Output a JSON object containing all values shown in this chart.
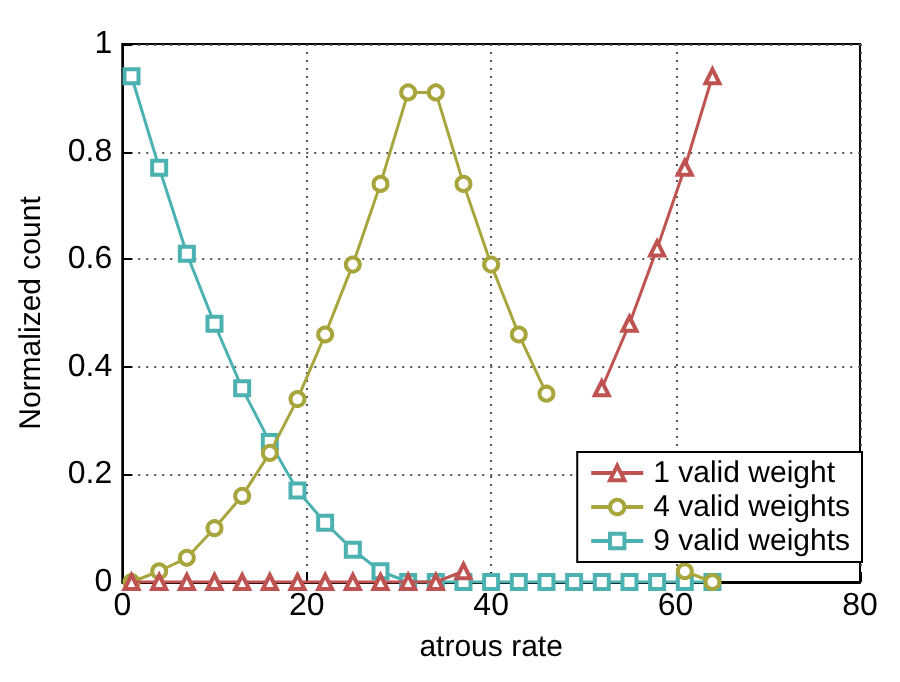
{
  "chart_data": {
    "type": "line",
    "xlabel": "atrous rate",
    "ylabel": "Normalized count",
    "x": [
      1,
      4,
      7,
      10,
      13,
      16,
      19,
      22,
      25,
      28,
      31,
      34,
      37,
      40,
      43,
      46,
      49,
      52,
      55,
      58,
      61,
      64
    ],
    "series": [
      {
        "name": "1 valid weight",
        "color": "#bf5352",
        "marker": "triangle",
        "values": [
          0,
          0,
          0,
          0,
          0,
          0,
          0,
          0,
          0,
          0,
          0,
          0,
          0.02,
          null,
          null,
          null,
          null,
          0.36,
          0.48,
          0.62,
          0.77,
          0.94
        ]
      },
      {
        "name": "4 valid weights",
        "color": "#a7a53c",
        "marker": "circle",
        "values": [
          0,
          0.02,
          0.045,
          0.1,
          0.16,
          0.24,
          0.34,
          0.46,
          0.59,
          0.74,
          0.91,
          0.91,
          0.74,
          0.59,
          0.46,
          0.35,
          null,
          null,
          null,
          null,
          0.02,
          0
        ]
      },
      {
        "name": "9 valid weights",
        "color": "#4cb1b1",
        "marker": "square",
        "values": [
          0.94,
          0.77,
          0.61,
          0.48,
          0.36,
          0.26,
          0.17,
          0.11,
          0.06,
          0.02,
          0,
          0,
          0,
          0,
          0,
          0,
          0,
          0,
          0,
          0,
          0,
          0
        ]
      }
    ],
    "xlim": [
      0,
      80
    ],
    "xticks": [
      0,
      20,
      40,
      60,
      80
    ],
    "ylim": [
      0,
      1
    ],
    "yticks": [
      0,
      0.2,
      0.4,
      0.6,
      0.8,
      1
    ],
    "grid": true,
    "line_style": "solid",
    "legend": "bottom right"
  }
}
